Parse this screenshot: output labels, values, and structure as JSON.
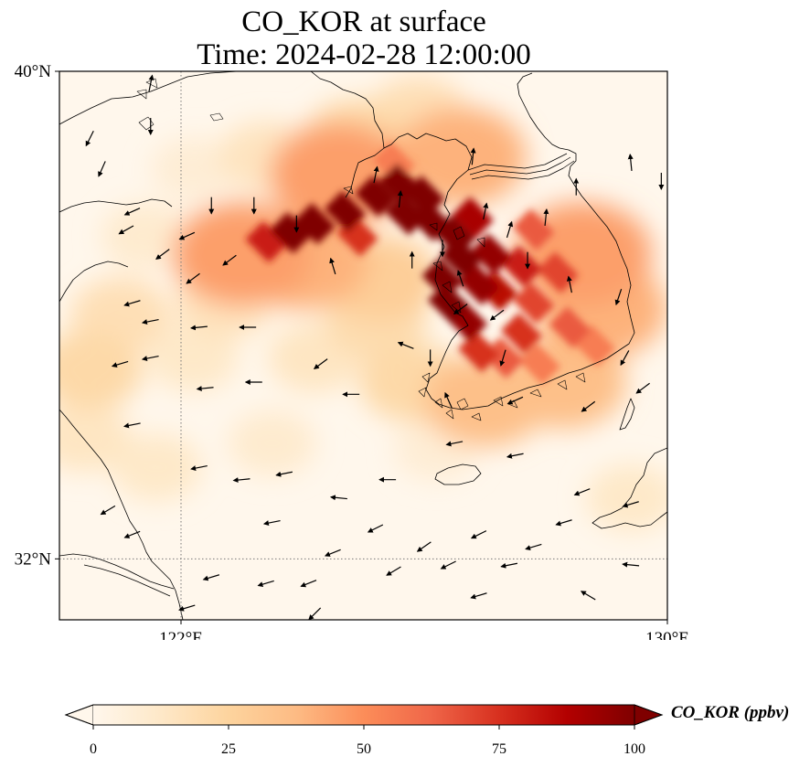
{
  "title_line1": "CO_KOR at surface",
  "title_line2": "Time: 2024-02-28 12:00:00",
  "map": {
    "projection": "PlateCarree",
    "lon_range": [
      120,
      130
    ],
    "lat_range": [
      31,
      40
    ],
    "background_color": "#fff7ec",
    "gridlines": "dotted",
    "lon_ticks": [
      {
        "value": 122,
        "label": "122°E"
      },
      {
        "value": 130,
        "label": "130°E"
      }
    ],
    "lat_ticks": [
      {
        "value": 40,
        "label": "40°N"
      },
      {
        "value": 32,
        "label": "32°N"
      }
    ]
  },
  "colorbar": {
    "label": "CO_KOR (ppbv)",
    "colormap": "OrRd",
    "colors": [
      "#fff7ec",
      "#fee8c8",
      "#fdd49e",
      "#fdbb84",
      "#fc8d59",
      "#ef6548",
      "#d7301f",
      "#b30000",
      "#7f0000"
    ],
    "min": 0,
    "max": 100,
    "extend": "both",
    "ticks": [
      {
        "value": 0,
        "label": "0"
      },
      {
        "value": 25,
        "label": "25"
      },
      {
        "value": 50,
        "label": "50"
      },
      {
        "value": 75,
        "label": "75"
      },
      {
        "value": 100,
        "label": "100"
      }
    ]
  },
  "field_cells": [
    {
      "lon": 123.8,
      "lat": 37.35,
      "value": 100
    },
    {
      "lon": 124.2,
      "lat": 37.5,
      "value": 100
    },
    {
      "lon": 124.7,
      "lat": 37.7,
      "value": 100
    },
    {
      "lon": 125.2,
      "lat": 37.95,
      "value": 100
    },
    {
      "lon": 125.6,
      "lat": 38.15,
      "value": 100
    },
    {
      "lon": 126.0,
      "lat": 37.95,
      "value": 100
    },
    {
      "lon": 125.7,
      "lat": 37.65,
      "value": 100
    },
    {
      "lon": 126.1,
      "lat": 37.55,
      "value": 100
    },
    {
      "lon": 126.5,
      "lat": 37.3,
      "value": 100
    },
    {
      "lon": 126.6,
      "lat": 36.95,
      "value": 100
    },
    {
      "lon": 126.3,
      "lat": 36.6,
      "value": 100
    },
    {
      "lon": 126.4,
      "lat": 36.2,
      "value": 100
    },
    {
      "lon": 126.7,
      "lat": 35.9,
      "value": 95
    },
    {
      "lon": 126.9,
      "lat": 36.5,
      "value": 95
    },
    {
      "lon": 127.1,
      "lat": 37.0,
      "value": 95
    },
    {
      "lon": 127.2,
      "lat": 36.4,
      "value": 85
    },
    {
      "lon": 127.6,
      "lat": 36.8,
      "value": 80
    },
    {
      "lon": 127.8,
      "lat": 36.2,
      "value": 70
    },
    {
      "lon": 128.2,
      "lat": 36.7,
      "value": 70
    },
    {
      "lon": 127.6,
      "lat": 35.7,
      "value": 75
    },
    {
      "lon": 128.4,
      "lat": 35.8,
      "value": 65
    },
    {
      "lon": 128.8,
      "lat": 35.5,
      "value": 55
    },
    {
      "lon": 127.3,
      "lat": 35.3,
      "value": 65
    },
    {
      "lon": 127.9,
      "lat": 35.2,
      "value": 55
    },
    {
      "lon": 126.9,
      "lat": 35.4,
      "value": 75
    },
    {
      "lon": 123.4,
      "lat": 37.2,
      "value": 80
    },
    {
      "lon": 124.9,
      "lat": 37.3,
      "value": 75
    },
    {
      "lon": 126.8,
      "lat": 37.6,
      "value": 90
    },
    {
      "lon": 127.8,
      "lat": 37.4,
      "value": 65
    },
    {
      "lon": 124.6,
      "lat": 38.3,
      "value": 45
    },
    {
      "lon": 125.5,
      "lat": 38.5,
      "value": 55
    },
    {
      "lon": 123.0,
      "lat": 37.0,
      "value": 45
    },
    {
      "lon": 128.6,
      "lat": 37.0,
      "value": 45
    },
    {
      "lon": 124.0,
      "lat": 36.9,
      "value": 40
    },
    {
      "lon": 125.3,
      "lat": 36.6,
      "value": 28
    },
    {
      "lon": 126.6,
      "lat": 38.6,
      "value": 40
    },
    {
      "lon": 128.9,
      "lat": 36.1,
      "value": 40
    },
    {
      "lon": 127.0,
      "lat": 34.6,
      "value": 35
    },
    {
      "lon": 128.3,
      "lat": 34.9,
      "value": 35
    },
    {
      "lon": 125.8,
      "lat": 34.9,
      "value": 22
    },
    {
      "lon": 124.9,
      "lat": 38.9,
      "value": 22
    },
    {
      "lon": 125.9,
      "lat": 39.3,
      "value": 18
    },
    {
      "lon": 123.4,
      "lat": 38.6,
      "value": 15
    },
    {
      "lon": 121.0,
      "lat": 36.0,
      "value": 18
    },
    {
      "lon": 120.5,
      "lat": 35.1,
      "value": 22
    },
    {
      "lon": 122.2,
      "lat": 35.3,
      "value": 12
    },
    {
      "lon": 124.2,
      "lat": 35.3,
      "value": 14
    },
    {
      "lon": 123.5,
      "lat": 33.9,
      "value": 10
    },
    {
      "lon": 121.6,
      "lat": 33.5,
      "value": 12
    },
    {
      "lon": 120.4,
      "lat": 34.0,
      "value": 14
    },
    {
      "lon": 122.7,
      "lat": 36.2,
      "value": 16
    },
    {
      "lon": 129.4,
      "lat": 33.0,
      "value": 12
    },
    {
      "lon": 126.2,
      "lat": 33.8,
      "value": 8
    },
    {
      "lon": 125.2,
      "lat": 35.9,
      "value": 20
    },
    {
      "lon": 122.2,
      "lat": 38.4,
      "value": 8
    },
    {
      "lon": 121.4,
      "lat": 37.3,
      "value": 10
    }
  ],
  "wind_vectors": [
    {
      "lon": 121.5,
      "lat": 39.8,
      "u": 0.2,
      "v": 1.0
    },
    {
      "lon": 121.5,
      "lat": 39.1,
      "u": 0.0,
      "v": -1.0
    },
    {
      "lon": 120.5,
      "lat": 38.9,
      "u": -0.5,
      "v": -1.0
    },
    {
      "lon": 120.7,
      "lat": 38.4,
      "u": -0.4,
      "v": -0.9
    },
    {
      "lon": 121.2,
      "lat": 37.7,
      "u": -0.9,
      "v": -0.4
    },
    {
      "lon": 121.1,
      "lat": 37.4,
      "u": -0.9,
      "v": -0.5
    },
    {
      "lon": 122.1,
      "lat": 37.3,
      "u": -0.9,
      "v": -0.4
    },
    {
      "lon": 121.7,
      "lat": 37.0,
      "u": -0.8,
      "v": -0.6
    },
    {
      "lon": 122.2,
      "lat": 36.6,
      "u": -0.8,
      "v": -0.6
    },
    {
      "lon": 122.8,
      "lat": 36.9,
      "u": -0.8,
      "v": -0.6
    },
    {
      "lon": 121.2,
      "lat": 36.2,
      "u": -1.0,
      "v": -0.3
    },
    {
      "lon": 121.5,
      "lat": 35.9,
      "u": -1.0,
      "v": -0.2
    },
    {
      "lon": 122.3,
      "lat": 35.8,
      "u": -1.0,
      "v": -0.1
    },
    {
      "lon": 123.1,
      "lat": 35.8,
      "u": -1.0,
      "v": 0.0
    },
    {
      "lon": 121.0,
      "lat": 35.2,
      "u": -1.0,
      "v": -0.3
    },
    {
      "lon": 121.5,
      "lat": 35.3,
      "u": -1.0,
      "v": -0.2
    },
    {
      "lon": 122.4,
      "lat": 34.8,
      "u": -1.0,
      "v": -0.1
    },
    {
      "lon": 123.2,
      "lat": 34.9,
      "u": -1.0,
      "v": 0.0
    },
    {
      "lon": 124.3,
      "lat": 35.2,
      "u": -0.8,
      "v": -0.6
    },
    {
      "lon": 124.8,
      "lat": 34.7,
      "u": -1.0,
      "v": 0.0
    },
    {
      "lon": 121.2,
      "lat": 34.2,
      "u": -1.0,
      "v": -0.2
    },
    {
      "lon": 122.3,
      "lat": 33.5,
      "u": -1.0,
      "v": -0.2
    },
    {
      "lon": 123.0,
      "lat": 33.3,
      "u": -1.0,
      "v": -0.1
    },
    {
      "lon": 123.7,
      "lat": 33.4,
      "u": -1.0,
      "v": -0.2
    },
    {
      "lon": 124.6,
      "lat": 33.0,
      "u": -1.0,
      "v": 0.1
    },
    {
      "lon": 125.4,
      "lat": 33.3,
      "u": -1.0,
      "v": 0.0
    },
    {
      "lon": 126.5,
      "lat": 33.9,
      "u": -1.0,
      "v": -0.2
    },
    {
      "lon": 127.5,
      "lat": 33.7,
      "u": -1.0,
      "v": -0.2
    },
    {
      "lon": 128.6,
      "lat": 33.1,
      "u": -1.0,
      "v": -0.4
    },
    {
      "lon": 128.3,
      "lat": 32.6,
      "u": -1.0,
      "v": -0.3
    },
    {
      "lon": 120.8,
      "lat": 32.8,
      "u": -1.0,
      "v": -0.6
    },
    {
      "lon": 121.2,
      "lat": 32.4,
      "u": -1.0,
      "v": -0.4
    },
    {
      "lon": 123.5,
      "lat": 32.6,
      "u": -1.0,
      "v": -0.2
    },
    {
      "lon": 124.5,
      "lat": 32.1,
      "u": -1.0,
      "v": -0.4
    },
    {
      "lon": 125.2,
      "lat": 32.5,
      "u": -1.0,
      "v": -0.5
    },
    {
      "lon": 126.0,
      "lat": 32.2,
      "u": -1.0,
      "v": -0.7
    },
    {
      "lon": 126.9,
      "lat": 32.4,
      "u": -1.0,
      "v": -0.5
    },
    {
      "lon": 127.8,
      "lat": 32.2,
      "u": -1.0,
      "v": -0.3
    },
    {
      "lon": 129.4,
      "lat": 32.9,
      "u": -1.0,
      "v": -0.3
    },
    {
      "lon": 122.5,
      "lat": 31.7,
      "u": -1.0,
      "v": -0.3
    },
    {
      "lon": 123.4,
      "lat": 31.6,
      "u": -1.0,
      "v": -0.3
    },
    {
      "lon": 124.1,
      "lat": 31.6,
      "u": -1.0,
      "v": -0.4
    },
    {
      "lon": 125.5,
      "lat": 31.8,
      "u": -1.0,
      "v": -0.6
    },
    {
      "lon": 126.4,
      "lat": 31.9,
      "u": -1.0,
      "v": -0.5
    },
    {
      "lon": 127.4,
      "lat": 31.9,
      "u": -1.0,
      "v": -0.2
    },
    {
      "lon": 129.4,
      "lat": 31.9,
      "u": -1.0,
      "v": 0.1
    },
    {
      "lon": 126.9,
      "lat": 31.4,
      "u": -1.0,
      "v": -0.3
    },
    {
      "lon": 128.7,
      "lat": 31.4,
      "u": -1.0,
      "v": 0.6
    },
    {
      "lon": 124.2,
      "lat": 31.1,
      "u": -0.7,
      "v": -0.7
    },
    {
      "lon": 122.1,
      "lat": 31.2,
      "u": -1.0,
      "v": -0.3
    },
    {
      "lon": 125.2,
      "lat": 38.3,
      "u": 0.2,
      "v": 1.0
    },
    {
      "lon": 126.8,
      "lat": 38.6,
      "u": 0.1,
      "v": 1.0
    },
    {
      "lon": 125.6,
      "lat": 37.9,
      "u": 0.1,
      "v": 1.0
    },
    {
      "lon": 124.5,
      "lat": 36.8,
      "u": -0.3,
      "v": 1.0
    },
    {
      "lon": 125.8,
      "lat": 36.9,
      "u": 0.0,
      "v": 1.0
    },
    {
      "lon": 126.6,
      "lat": 36.6,
      "u": -0.3,
      "v": 0.9
    },
    {
      "lon": 127.0,
      "lat": 37.7,
      "u": 0.2,
      "v": 1.0
    },
    {
      "lon": 127.4,
      "lat": 37.4,
      "u": 0.3,
      "v": 1.0
    },
    {
      "lon": 128.0,
      "lat": 37.6,
      "u": 0.1,
      "v": 1.0
    },
    {
      "lon": 128.5,
      "lat": 38.1,
      "u": 0.0,
      "v": 1.0
    },
    {
      "lon": 126.1,
      "lat": 35.3,
      "u": 0.0,
      "v": -1.0
    },
    {
      "lon": 127.3,
      "lat": 35.3,
      "u": -0.3,
      "v": -1.0
    },
    {
      "lon": 129.4,
      "lat": 38.5,
      "u": -0.1,
      "v": 1.0
    },
    {
      "lon": 129.9,
      "lat": 38.2,
      "u": 0.0,
      "v": -1.0
    },
    {
      "lon": 126.4,
      "lat": 34.6,
      "u": -0.4,
      "v": 0.9
    },
    {
      "lon": 127.5,
      "lat": 34.6,
      "u": -0.9,
      "v": -0.4
    },
    {
      "lon": 128.7,
      "lat": 34.5,
      "u": -0.8,
      "v": -0.6
    },
    {
      "lon": 129.6,
      "lat": 34.8,
      "u": -0.8,
      "v": -0.6
    },
    {
      "lon": 129.3,
      "lat": 35.3,
      "u": -0.5,
      "v": -0.9
    },
    {
      "lon": 123.2,
      "lat": 37.8,
      "u": 0.0,
      "v": -1.0
    },
    {
      "lon": 123.9,
      "lat": 37.5,
      "u": 0.0,
      "v": -1.0
    },
    {
      "lon": 122.5,
      "lat": 37.8,
      "u": 0.0,
      "v": -1.0
    },
    {
      "lon": 127.7,
      "lat": 36.9,
      "u": 0.0,
      "v": -1.0
    },
    {
      "lon": 128.4,
      "lat": 36.5,
      "u": -0.2,
      "v": 1.0
    },
    {
      "lon": 129.2,
      "lat": 36.3,
      "u": -0.3,
      "v": -0.9
    },
    {
      "lon": 125.7,
      "lat": 35.5,
      "u": -1.0,
      "v": 0.4
    },
    {
      "lon": 126.6,
      "lat": 36.1,
      "u": -0.8,
      "v": -0.6
    },
    {
      "lon": 127.2,
      "lat": 36.0,
      "u": -0.8,
      "v": -0.6
    },
    {
      "lon": 126.3,
      "lat": 37.1,
      "u": 0.0,
      "v": -1.0
    }
  ]
}
